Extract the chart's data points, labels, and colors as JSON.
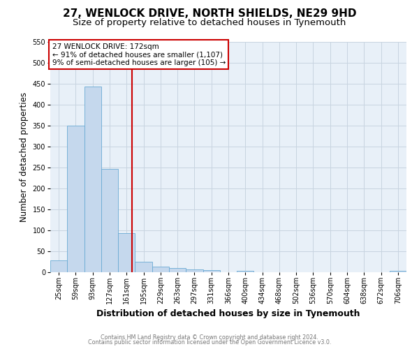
{
  "title": "27, WENLOCK DRIVE, NORTH SHIELDS, NE29 9HD",
  "subtitle": "Size of property relative to detached houses in Tynemouth",
  "xlabel": "Distribution of detached houses by size in Tynemouth",
  "ylabel": "Number of detached properties",
  "bin_labels": [
    "25sqm",
    "59sqm",
    "93sqm",
    "127sqm",
    "161sqm",
    "195sqm",
    "229sqm",
    "263sqm",
    "297sqm",
    "331sqm",
    "366sqm",
    "400sqm",
    "434sqm",
    "468sqm",
    "502sqm",
    "536sqm",
    "570sqm",
    "604sqm",
    "638sqm",
    "672sqm",
    "706sqm"
  ],
  "bar_values": [
    28,
    350,
    444,
    247,
    93,
    25,
    14,
    10,
    7,
    5,
    0,
    4,
    0,
    0,
    0,
    0,
    0,
    0,
    0,
    0,
    4
  ],
  "bar_color": "#c5d8ed",
  "bar_edgecolor": "#6aaad4",
  "vline_pos": 4.33,
  "vline_color": "#cc0000",
  "ylim": [
    0,
    550
  ],
  "yticks": [
    0,
    50,
    100,
    150,
    200,
    250,
    300,
    350,
    400,
    450,
    500,
    550
  ],
  "annotation_box_text": "27 WENLOCK DRIVE: 172sqm\n← 91% of detached houses are smaller (1,107)\n9% of semi-detached houses are larger (105) →",
  "annotation_box_color": "#cc0000",
  "footer_line1": "Contains HM Land Registry data © Crown copyright and database right 2024.",
  "footer_line2": "Contains public sector information licensed under the Open Government Licence v3.0.",
  "bg_color": "#ffffff",
  "plot_bg_color": "#e8f0f8",
  "grid_color": "#c8d4e0",
  "title_fontsize": 11,
  "subtitle_fontsize": 9.5,
  "ylabel_fontsize": 8.5,
  "xlabel_fontsize": 9,
  "tick_fontsize": 7,
  "annot_fontsize": 7.5,
  "footer_fontsize": 5.8
}
